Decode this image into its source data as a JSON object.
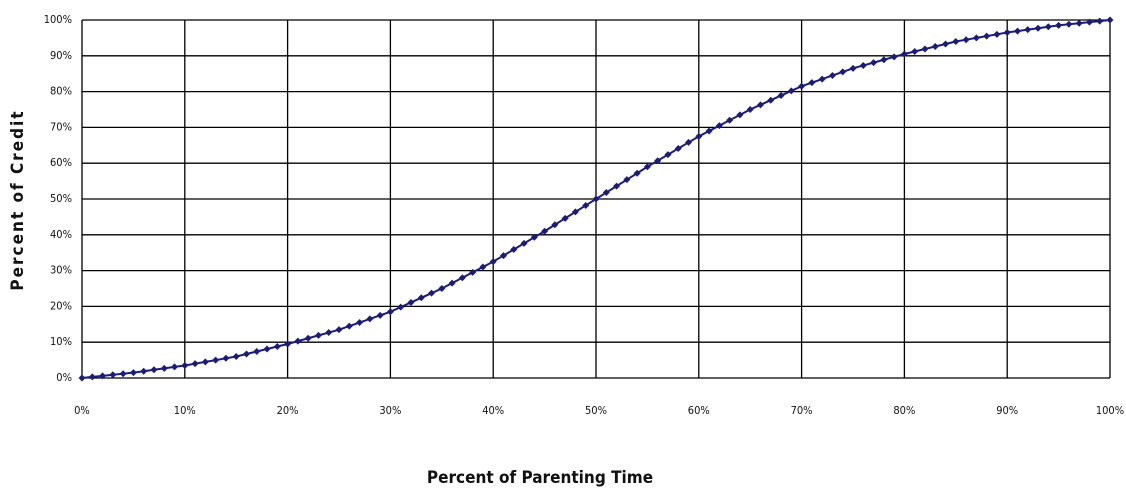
{
  "chart_data": {
    "type": "line",
    "x_label": "Percent of Parenting Time",
    "y_label": "Percent of Credit",
    "x": [
      0,
      1,
      2,
      3,
      4,
      5,
      6,
      7,
      8,
      9,
      10,
      11,
      12,
      13,
      14,
      15,
      16,
      17,
      18,
      19,
      20,
      21,
      22,
      23,
      24,
      25,
      26,
      27,
      28,
      29,
      30,
      31,
      32,
      33,
      34,
      35,
      36,
      37,
      38,
      39,
      40,
      41,
      42,
      43,
      44,
      45,
      46,
      47,
      48,
      49,
      50,
      51,
      52,
      53,
      54,
      55,
      56,
      57,
      58,
      59,
      60,
      61,
      62,
      63,
      64,
      65,
      66,
      67,
      68,
      69,
      70,
      71,
      72,
      73,
      74,
      75,
      76,
      77,
      78,
      79,
      80,
      81,
      82,
      83,
      84,
      85,
      86,
      87,
      88,
      89,
      90,
      91,
      92,
      93,
      94,
      95,
      96,
      97,
      98,
      99,
      100
    ],
    "series": [
      {
        "color": "#1c1c78",
        "values": [
          0,
          0.3,
          0.6,
          0.9,
          1.2,
          1.5,
          1.9,
          2.3,
          2.7,
          3.1,
          3.5,
          4,
          4.5,
          5,
          5.5,
          6,
          6.7,
          7.4,
          8.1,
          8.8,
          9.5,
          10.3,
          11.1,
          11.9,
          12.7,
          13.5,
          14.5,
          15.5,
          16.5,
          17.5,
          18.5,
          19.8,
          21.1,
          22.4,
          23.7,
          25,
          26.5,
          28,
          29.5,
          31,
          32.5,
          34.2,
          35.9,
          37.6,
          39.3,
          41,
          42.8,
          44.6,
          46.4,
          48.2,
          50,
          51.8,
          53.6,
          55.4,
          57.2,
          59,
          60.7,
          62.4,
          64.1,
          65.8,
          67.5,
          69,
          70.5,
          72,
          73.5,
          75,
          76.3,
          77.6,
          78.9,
          80.2,
          81.5,
          82.5,
          83.5,
          84.5,
          85.5,
          86.5,
          87.3,
          88.1,
          88.9,
          89.7,
          90.5,
          91.2,
          91.9,
          92.6,
          93.3,
          94,
          94.5,
          95,
          95.5,
          96,
          96.5,
          96.9,
          97.3,
          97.7,
          98.1,
          98.5,
          98.8,
          99.1,
          99.4,
          99.7,
          100
        ]
      }
    ],
    "xlim": [
      0,
      100
    ],
    "ylim": [
      0,
      100
    ],
    "xticks": [
      {
        "value": 0,
        "label": "0%"
      },
      {
        "value": 10,
        "label": "10%"
      },
      {
        "value": 20,
        "label": "20%"
      },
      {
        "value": 30,
        "label": "30%"
      },
      {
        "value": 40,
        "label": "40%"
      },
      {
        "value": 50,
        "label": "50%"
      },
      {
        "value": 60,
        "label": "60%"
      },
      {
        "value": 70,
        "label": "70%"
      },
      {
        "value": 80,
        "label": "80%"
      },
      {
        "value": 90,
        "label": "90%"
      },
      {
        "value": 100,
        "label": "100%"
      }
    ],
    "yticks": [
      {
        "value": 0,
        "label": "0%"
      },
      {
        "value": 10,
        "label": "10%"
      },
      {
        "value": 20,
        "label": "20%"
      },
      {
        "value": 30,
        "label": "30%"
      },
      {
        "value": 40,
        "label": "40%"
      },
      {
        "value": 50,
        "label": "50%"
      },
      {
        "value": 60,
        "label": "60%"
      },
      {
        "value": 70,
        "label": "70%"
      },
      {
        "value": 80,
        "label": "80%"
      },
      {
        "value": 90,
        "label": "90%"
      },
      {
        "value": 100,
        "label": "100%"
      }
    ],
    "grid": true
  }
}
